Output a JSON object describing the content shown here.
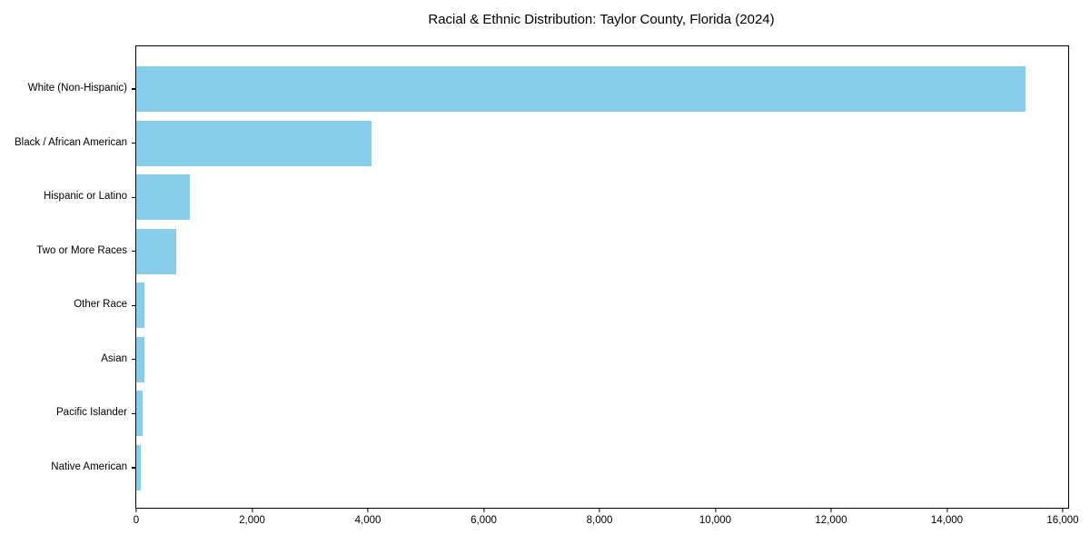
{
  "title": "Racial & Ethnic Distribution: Taylor County, Florida (2024)",
  "chart_data": {
    "type": "bar",
    "orientation": "horizontal",
    "title": "Racial & Ethnic Distribution: Taylor County, Florida (2024)",
    "xlabel": "",
    "ylabel": "",
    "categories": [
      "White (Non-Hispanic)",
      "Black / African American",
      "Hispanic or Latino",
      "Two or More Races",
      "Other Race",
      "Asian",
      "Pacific Islander",
      "Native American"
    ],
    "values": [
      15360,
      4060,
      925,
      690,
      145,
      135,
      105,
      75
    ],
    "xlim": [
      0,
      16094
    ],
    "x_ticks": [
      0,
      2000,
      4000,
      6000,
      8000,
      10000,
      12000,
      14000,
      16000
    ],
    "x_tick_labels": [
      "0",
      "2,000",
      "4,000",
      "6,000",
      "8,000",
      "10,000",
      "12,000",
      "14,000",
      "16,000"
    ],
    "grid": false,
    "legend": null,
    "bar_color": "#87CEEB",
    "background_color": "#FFFFFF",
    "spine_color": "#000000",
    "text_color": "#000000"
  }
}
